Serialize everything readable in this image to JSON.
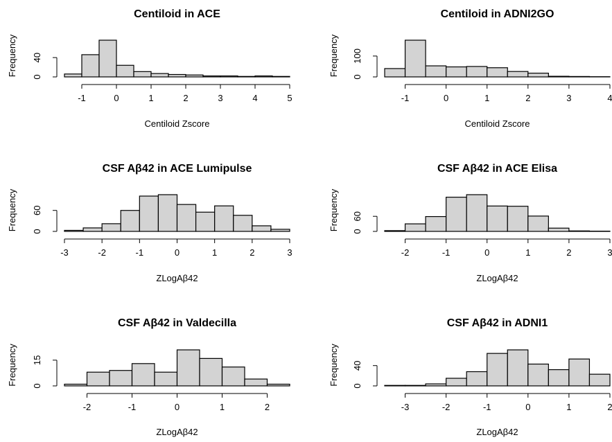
{
  "chart_data": [
    {
      "type": "bar",
      "title": "Centiloid in ACE",
      "xlabel": "Centiloid Zscore",
      "ylabel": "Frequency",
      "xlim": [
        -1.5,
        5
      ],
      "x_ticks": [
        -1,
        0,
        1,
        2,
        3,
        4,
        5
      ],
      "y_ticks": [
        0,
        40
      ],
      "bin_edges": [
        -1.5,
        -1,
        -0.5,
        0,
        0.5,
        1,
        1.5,
        2,
        2.5,
        3,
        3.5,
        4,
        4.5,
        5
      ],
      "values": [
        6,
        46,
        76,
        24,
        11,
        7,
        5,
        4,
        2,
        2,
        1,
        2,
        1
      ]
    },
    {
      "type": "bar",
      "title": "Centiloid in ADNI2GO",
      "xlabel": "Centiloid Zscore",
      "ylabel": "Frequency",
      "xlim": [
        -1.5,
        4
      ],
      "x_ticks": [
        -1,
        0,
        1,
        2,
        3,
        4
      ],
      "y_ticks": [
        0,
        100
      ],
      "bin_edges": [
        -1.5,
        -1,
        -0.5,
        0,
        0.5,
        1,
        1.5,
        2,
        2.5,
        3,
        3.5,
        4
      ],
      "values": [
        40,
        176,
        53,
        48,
        50,
        44,
        26,
        18,
        3,
        2,
        1
      ]
    },
    {
      "type": "bar",
      "title": "CSF Aβ42 in ACE Lumipulse",
      "xlabel": "ZLogAβ42",
      "ylabel": "Frequency",
      "xlim": [
        -3,
        3
      ],
      "x_ticks": [
        -3,
        -2,
        -1,
        0,
        1,
        2,
        3
      ],
      "y_ticks": [
        0,
        60
      ],
      "bin_edges": [
        -3,
        -2.5,
        -2,
        -1.5,
        -1,
        -0.5,
        0,
        0.5,
        1,
        1.5,
        2,
        2.5,
        3
      ],
      "values": [
        3,
        10,
        22,
        60,
        101,
        105,
        77,
        55,
        73,
        46,
        16,
        6
      ]
    },
    {
      "type": "bar",
      "title": "CSF Aβ42 in ACE Elisa",
      "xlabel": "ZLogAβ42",
      "ylabel": "Frequency",
      "xlim": [
        -2.5,
        3
      ],
      "x_ticks": [
        -2,
        -1,
        0,
        1,
        2,
        3
      ],
      "y_ticks": [
        0,
        60
      ],
      "bin_edges": [
        -2.5,
        -2,
        -1.5,
        -1,
        -0.5,
        0,
        0.5,
        1,
        1.5,
        2,
        2.5,
        3
      ],
      "values": [
        3,
        30,
        59,
        136,
        146,
        101,
        100,
        61,
        13,
        2,
        1
      ]
    },
    {
      "type": "bar",
      "title": "CSF Aβ42 in Valdecilla",
      "xlabel": "ZLogAβ42",
      "ylabel": "Frequency",
      "xlim": [
        -2.5,
        2.5
      ],
      "x_ticks": [
        -2,
        -1,
        0,
        1,
        2
      ],
      "y_ticks": [
        0,
        15
      ],
      "bin_edges": [
        -2.5,
        -2,
        -1.5,
        -1,
        -0.5,
        0,
        0.5,
        1,
        1.5,
        2,
        2.5
      ],
      "values": [
        1,
        8,
        9,
        13,
        8,
        21,
        16,
        11,
        4,
        1
      ]
    },
    {
      "type": "bar",
      "title": "CSF Aβ42 in ADNI1",
      "xlabel": "ZLogAβ42",
      "ylabel": "Frequency",
      "xlim": [
        -3.5,
        2
      ],
      "x_ticks": [
        -3,
        -2,
        -1,
        0,
        1,
        2
      ],
      "y_ticks": [
        0,
        40
      ],
      "bin_edges": [
        -3.5,
        -3,
        -2.5,
        -2,
        -1.5,
        -1,
        -0.5,
        0,
        0.5,
        1,
        1.5,
        2
      ],
      "values": [
        1,
        1,
        4,
        15,
        28,
        64,
        71,
        43,
        32,
        53,
        23
      ]
    }
  ]
}
